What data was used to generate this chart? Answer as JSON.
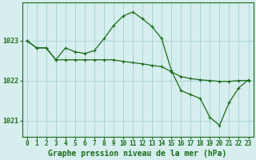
{
  "title": "Graphe pression niveau de la mer (hPa)",
  "bg_color": "#d6eeee",
  "grid_color": "#aad4d4",
  "line_color": "#1a6b1a",
  "hours": [
    0,
    1,
    2,
    3,
    4,
    5,
    6,
    7,
    8,
    9,
    10,
    11,
    12,
    13,
    14,
    15,
    16,
    17,
    18,
    19,
    20,
    21,
    22,
    23
  ],
  "series1": [
    1023.0,
    1022.82,
    1022.82,
    1022.52,
    1022.52,
    1022.52,
    1022.52,
    1022.52,
    1022.52,
    1022.52,
    1022.48,
    1022.45,
    1022.42,
    1022.38,
    1022.35,
    1022.22,
    1022.1,
    1022.05,
    1022.02,
    1022.0,
    1021.98,
    1021.98,
    1022.0,
    1022.0
  ],
  "series2": [
    1023.0,
    1022.82,
    1022.82,
    1022.52,
    1022.82,
    1022.72,
    1022.68,
    1022.75,
    1023.05,
    1023.38,
    1023.62,
    1023.72,
    1023.55,
    1023.35,
    1023.05,
    1022.25,
    1021.75,
    1021.65,
    1021.55,
    1021.08,
    1020.88,
    1021.45,
    1021.82,
    1022.02
  ],
  "ylim": [
    1020.6,
    1023.95
  ],
  "yticks": [
    1021,
    1022,
    1023
  ],
  "markersize": 2.8,
  "linewidth": 0.9,
  "xlabel_fontsize": 7.0,
  "tick_fontsize": 5.5
}
